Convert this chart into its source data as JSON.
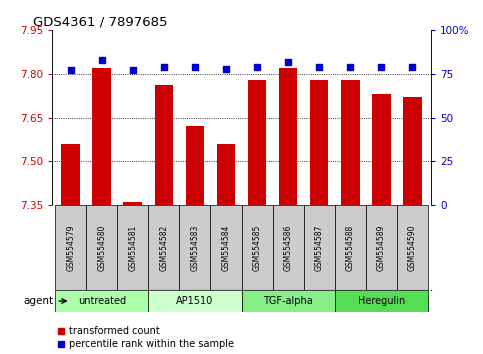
{
  "title": "GDS4361 / 7897685",
  "samples": [
    "GSM554579",
    "GSM554580",
    "GSM554581",
    "GSM554582",
    "GSM554583",
    "GSM554584",
    "GSM554585",
    "GSM554586",
    "GSM554587",
    "GSM554588",
    "GSM554589",
    "GSM554590"
  ],
  "transformed_counts": [
    7.56,
    7.82,
    7.36,
    7.76,
    7.62,
    7.56,
    7.78,
    7.82,
    7.78,
    7.78,
    7.73,
    7.72
  ],
  "percentile_ranks": [
    77,
    83,
    77,
    79,
    79,
    78,
    79,
    82,
    79,
    79,
    79,
    79
  ],
  "agents": [
    {
      "label": "untreated",
      "start": 0,
      "end": 3,
      "color": "#aaffaa"
    },
    {
      "label": "AP1510",
      "start": 3,
      "end": 6,
      "color": "#ccffcc"
    },
    {
      "label": "TGF-alpha",
      "start": 6,
      "end": 9,
      "color": "#88ee88"
    },
    {
      "label": "Heregulin",
      "start": 9,
      "end": 12,
      "color": "#55dd55"
    }
  ],
  "ylim_left": [
    7.35,
    7.95
  ],
  "ylim_right": [
    0,
    100
  ],
  "bar_color": "#cc0000",
  "dot_color": "#0000cc",
  "left_tick_color": "#cc0000",
  "right_tick_color": "#0000cc",
  "legend_items": [
    {
      "label": "transformed count",
      "color": "#cc0000"
    },
    {
      "label": "percentile rank within the sample",
      "color": "#0000cc"
    }
  ],
  "agent_label": "agent",
  "sample_box_color": "#cccccc"
}
